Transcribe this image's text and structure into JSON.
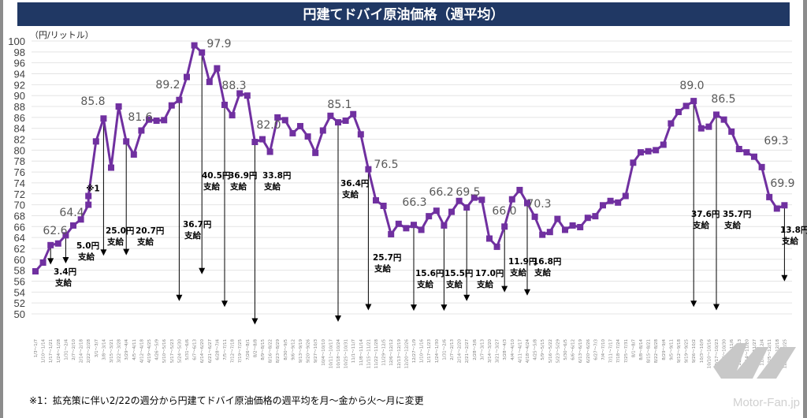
{
  "title": "円建てドバイ原油価格（週平均）",
  "footnote": "※1：拡充策に伴い2/22の週分から円建てドバイ原油価格の週平均を月～金から火～月に変更",
  "watermark": "Motor-Fan.jp",
  "colors": {
    "title_bar": "#203864",
    "series": "#7030a0",
    "grid": "#e4e4e4",
    "arrow": "#000000"
  },
  "chart_data": {
    "type": "line",
    "title": "円建てドバイ原油価格（週平均）",
    "ylabel": "（円/リットル）",
    "xlabel": "",
    "ylim": [
      50,
      100
    ],
    "ytick_step": 2,
    "grid": true,
    "categories": [
      "1/3～1/7",
      "1/10～1/14",
      "1/17～1/21",
      "1/24～1/28",
      "1/31～2/4",
      "2/7～2/10",
      "2/14～2/18",
      "2/22～2/28",
      "3/1～3/7",
      "3/8～3/14",
      "3/15～3/21",
      "3/22～3/28",
      "3/29～4/4",
      "4/5～4/11",
      "4/12～4/18",
      "4/19～4/25",
      "4/26～5/9",
      "5/10～5/16",
      "5/17～5/23",
      "5/24～5/30",
      "5/31～6/6",
      "6/7～6/13",
      "6/14～6/20",
      "6/21～6/27",
      "6/28～7/4",
      "7/5～7/11",
      "7/12～7/18",
      "7/19～7/25",
      "7/26～8/1",
      "8/2～8/8",
      "8/9～8/15",
      "8/16～8/22",
      "8/23～8/29",
      "8/30～9/5",
      "9/6～9/12",
      "9/13～9/19",
      "9/20～9/26",
      "9/27～10/3",
      "10/4～10/10",
      "10/11～10/17",
      "10/18～10/24",
      "10/25～10/31",
      "11/1～11/7",
      "11/8～11/14",
      "11/15～11/21",
      "11/22～11/28",
      "11/29～12/5",
      "12/6～12/12",
      "12/13～12/19",
      "12/20～12/26",
      "12/27～1/9",
      "1/10～1/16",
      "1/17～1/23",
      "1/24～1/30",
      "1/31～2/6",
      "2/7～2/13",
      "2/14～2/20",
      "2/21～2/27",
      "2/28～3/6",
      "3/7～3/13",
      "3/14～3/20",
      "3/21～3/27",
      "3/28～4/3",
      "4/4～4/10",
      "4/11～4/17",
      "4/18～4/24",
      "4/25～5/8",
      "5/9～5/15",
      "5/16～5/22",
      "5/23～5/29",
      "5/30～6/5",
      "6/6～6/12",
      "6/13～6/19",
      "6/20～6/26",
      "6/27～7/3",
      "7/4～7/10",
      "7/11～7/17",
      "7/18～7/24",
      "7/25～7/31",
      "8/1～8/7",
      "8/8～8/14",
      "8/15～8/21",
      "8/22～8/28",
      "8/29～9/4",
      "9/5～9/11",
      "9/12～9/18",
      "9/19～9/25",
      "9/26～10/2",
      "10/3～10/9",
      "10/10～10/16",
      "10/17～10/23",
      "10/24～10/30",
      "10/31～11/6",
      "11/7～11/13",
      "11/14～11/20",
      "11/21～11/27",
      "11/28～12/4",
      "12/5～12/11",
      "12/12～12/18",
      "12/19～12/25"
    ],
    "series": [
      {
        "name": "円建てドバイ原油価格（週平均）",
        "values": [
          57.8,
          59.4,
          62.6,
          62.9,
          64.4,
          66.2,
          67.3,
          70.0,
          81.6,
          85.8,
          76.8,
          88.0,
          81.6,
          79.2,
          83.6,
          85.6,
          85.4,
          85.5,
          88.2,
          89.2,
          93.4,
          99.2,
          97.9,
          92.5,
          95.0,
          88.3,
          86.4,
          90.4,
          90.0,
          81.5,
          82.0,
          79.7,
          86.0,
          85.5,
          83.1,
          84.4,
          82.5,
          79.5,
          83.6,
          86.3,
          85.1,
          85.4,
          86.6,
          82.9,
          76.5,
          70.8,
          69.8,
          64.6,
          66.5,
          65.7,
          66.3,
          65.4,
          67.9,
          68.9,
          66.2,
          68.7,
          70.7,
          69.5,
          71.3,
          70.9,
          63.8,
          62.3,
          66.0,
          71.0,
          72.7,
          70.3,
          67.8,
          64.5,
          65.0,
          67.4,
          65.4,
          66.2,
          65.9,
          67.6,
          67.9,
          69.9,
          70.7,
          70.4,
          71.6,
          77.7,
          79.6,
          79.8,
          80.0,
          81.0,
          84.9,
          87.0,
          88.1,
          89.0,
          84.0,
          84.3,
          86.5,
          85.6,
          83.4,
          80.2,
          79.6,
          78.8,
          76.9,
          71.4,
          69.3,
          69.9
        ]
      }
    ],
    "extra_points": [
      {
        "index": 7,
        "value": 71.6,
        "note": "※1"
      }
    ],
    "data_labels": [
      {
        "index": 2,
        "text": "62.6"
      },
      {
        "index": 4,
        "text": "64.4"
      },
      {
        "index": 9,
        "text": "85.8"
      },
      {
        "index": 12,
        "text": "81.6"
      },
      {
        "index": 19,
        "text": "89.2"
      },
      {
        "index": 22,
        "text": "97.9"
      },
      {
        "index": 25,
        "text": "88.3"
      },
      {
        "index": 30,
        "text": "82.0"
      },
      {
        "index": 40,
        "text": "85.1"
      },
      {
        "index": 44,
        "text": "76.5"
      },
      {
        "index": 50,
        "text": "66.3"
      },
      {
        "index": 54,
        "text": "66.2"
      },
      {
        "index": 57,
        "text": "69.5"
      },
      {
        "index": 62,
        "text": "66.0"
      },
      {
        "index": 65,
        "text": "70.3"
      },
      {
        "index": 87,
        "text": "89.0"
      },
      {
        "index": 90,
        "text": "86.5"
      },
      {
        "index": 98,
        "text": "69.3"
      },
      {
        "index": 99,
        "text": "69.9"
      }
    ],
    "subsidies": [
      {
        "index": 2,
        "amount": "3.4円",
        "label": "支給",
        "arrow_to": 59.2
      },
      {
        "index": 4,
        "amount": "5.0円",
        "label": "支給",
        "arrow_to": 59.4
      },
      {
        "index": 9,
        "amount": "25.0円",
        "label": "支給",
        "arrow_to": 60.8
      },
      {
        "index": 12,
        "amount": "20.7円",
        "label": "支給",
        "arrow_to": 60.9
      },
      {
        "index": 19,
        "amount": "36.7円",
        "label": "支給",
        "arrow_to": 52.5
      },
      {
        "index": 22,
        "amount": "40.5円",
        "label": "支給",
        "arrow_to": 57.4
      },
      {
        "index": 25,
        "amount": "36.9円",
        "label": "支給",
        "arrow_to": 51.4
      },
      {
        "index": 29,
        "amount": "33.8円",
        "label": "支給",
        "arrow_to": 48.2
      },
      {
        "index": 40,
        "amount": "36.4円",
        "label": "支給",
        "arrow_to": 48.7
      },
      {
        "index": 44,
        "amount": "25.7円",
        "label": "支給",
        "arrow_to": 50.8
      },
      {
        "index": 50,
        "amount": "15.6円",
        "label": "支給",
        "arrow_to": 50.7
      },
      {
        "index": 54,
        "amount": "15.5円",
        "label": "支給",
        "arrow_to": 50.7
      },
      {
        "index": 57,
        "amount": "17.0円",
        "label": "支給",
        "arrow_to": 52.5
      },
      {
        "index": 62,
        "amount": "11.9円",
        "label": "支給",
        "arrow_to": 54.1
      },
      {
        "index": 65,
        "amount": "16.8円",
        "label": "支給",
        "arrow_to": 53.5
      },
      {
        "index": 87,
        "amount": "37.6円",
        "label": "支給",
        "arrow_to": 51.4
      },
      {
        "index": 90,
        "amount": "35.7円",
        "label": "支給",
        "arrow_to": 50.8
      },
      {
        "index": 99,
        "amount": "13.8円",
        "label": "支給",
        "arrow_to": 56.1
      }
    ]
  }
}
